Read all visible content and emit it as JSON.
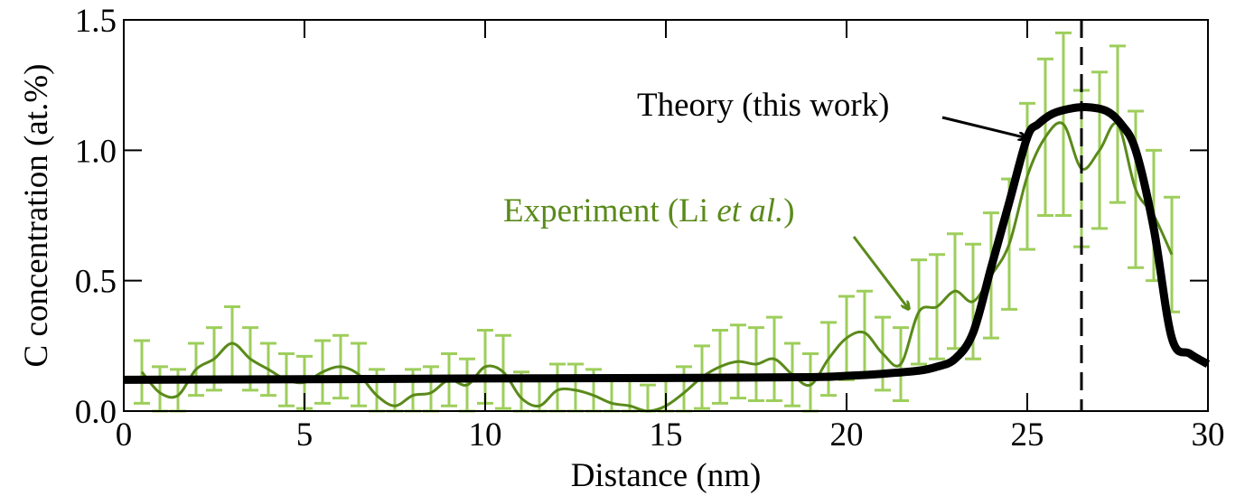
{
  "chart_data": {
    "type": "line",
    "title": "",
    "xlabel": "Distance (nm)",
    "ylabel": "C concentration (at.%)",
    "xlim": [
      0,
      30
    ],
    "ylim": [
      0,
      1.5
    ],
    "xticks": [
      0,
      5,
      10,
      15,
      20,
      25,
      30
    ],
    "xtick_labels": [
      "0",
      "5",
      "10",
      "15",
      "20",
      "25",
      "30"
    ],
    "yticks": [
      0.0,
      0.5,
      1.0,
      1.5
    ],
    "ytick_labels": [
      "0.0",
      "0.5",
      "1.0",
      "1.5"
    ],
    "grid": false,
    "legend": "none (inline annotations)",
    "vline": {
      "x": 26.5,
      "style": "dashed",
      "color": "#000000"
    },
    "series": [
      {
        "name": "Theory (this work)",
        "color": "#000000",
        "x": [
          0,
          5,
          10,
          15,
          19,
          20,
          21,
          22,
          22.5,
          23,
          23.5,
          24,
          24.5,
          25,
          25.3,
          25.7,
          26.2,
          26.7,
          27.2,
          27.6,
          28,
          28.5,
          29,
          29.5,
          30
        ],
        "y": [
          0.12,
          0.122,
          0.125,
          0.127,
          0.13,
          0.135,
          0.143,
          0.155,
          0.17,
          0.2,
          0.3,
          0.55,
          0.8,
          1.05,
          1.1,
          1.14,
          1.16,
          1.165,
          1.15,
          1.1,
          1.0,
          0.7,
          0.28,
          0.22,
          0.18
        ]
      },
      {
        "name": "Experiment (Li et al.)",
        "color": "#5a8a1a",
        "errorbar_color": "#8cc63f",
        "x": [
          0.5,
          1.0,
          1.5,
          2.0,
          2.5,
          3.0,
          3.5,
          4.0,
          4.5,
          5.0,
          5.5,
          6.0,
          6.5,
          7.0,
          7.5,
          8.0,
          8.5,
          9.0,
          9.5,
          10.0,
          10.5,
          11.0,
          11.5,
          12.0,
          12.5,
          13.0,
          13.5,
          14.0,
          14.5,
          15.0,
          15.5,
          16.0,
          16.5,
          17.0,
          17.5,
          18.0,
          18.5,
          19.0,
          19.5,
          20.0,
          20.5,
          21.0,
          21.5,
          22.0,
          22.5,
          23.0,
          23.5,
          24.0,
          24.5,
          25.0,
          25.5,
          26.0,
          26.5,
          27.0,
          27.5,
          28.0,
          28.5,
          29.0
        ],
        "y": [
          0.15,
          0.07,
          0.06,
          0.16,
          0.2,
          0.26,
          0.2,
          0.16,
          0.12,
          0.11,
          0.15,
          0.17,
          0.14,
          0.06,
          0.02,
          0.06,
          0.07,
          0.12,
          0.1,
          0.17,
          0.15,
          0.05,
          0.02,
          0.08,
          0.08,
          0.06,
          0.03,
          0.02,
          0.0,
          0.02,
          0.07,
          0.13,
          0.17,
          0.19,
          0.18,
          0.2,
          0.14,
          0.1,
          0.2,
          0.28,
          0.3,
          0.22,
          0.18,
          0.38,
          0.4,
          0.46,
          0.42,
          0.52,
          0.64,
          0.9,
          1.05,
          1.1,
          0.93,
          1.0,
          1.1,
          0.85,
          0.75,
          0.6
        ],
        "yerr": [
          0.12,
          0.1,
          0.1,
          0.1,
          0.12,
          0.14,
          0.12,
          0.1,
          0.1,
          0.1,
          0.12,
          0.12,
          0.12,
          0.1,
          0.1,
          0.1,
          0.1,
          0.1,
          0.1,
          0.14,
          0.14,
          0.1,
          0.1,
          0.1,
          0.1,
          0.1,
          0.1,
          0.1,
          0.1,
          0.1,
          0.1,
          0.12,
          0.14,
          0.14,
          0.14,
          0.16,
          0.12,
          0.12,
          0.14,
          0.16,
          0.16,
          0.14,
          0.14,
          0.2,
          0.2,
          0.22,
          0.22,
          0.24,
          0.25,
          0.28,
          0.3,
          0.35,
          0.3,
          0.3,
          0.3,
          0.3,
          0.25,
          0.22
        ]
      }
    ],
    "annotations": [
      {
        "text": "Theory (this work)",
        "color": "#000000",
        "points_to_x": 25.1,
        "points_to_y": 1.03
      },
      {
        "text_main": "Experiment (Li ",
        "text_italic": "et al.",
        "text_end": ")",
        "color": "#5a8a1a",
        "points_to_x": 21.8,
        "points_to_y": 0.38
      }
    ]
  }
}
